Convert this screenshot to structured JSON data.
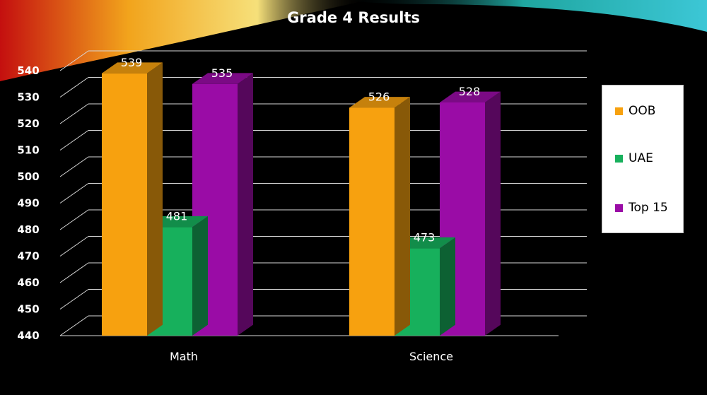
{
  "chart_data": {
    "type": "bar",
    "title": "Grade 4 Results",
    "categories": [
      "Math",
      "Science"
    ],
    "series": [
      {
        "name": "OOB",
        "color": "#F7A10F",
        "values": [
          539,
          526
        ]
      },
      {
        "name": "UAE",
        "color": "#17B05C",
        "values": [
          481,
          473
        ]
      },
      {
        "name": "Top 15",
        "color": "#9A0CA6",
        "values": [
          535,
          528
        ]
      }
    ],
    "ylim": [
      440,
      540
    ],
    "yticks": [
      440,
      450,
      460,
      470,
      480,
      490,
      500,
      510,
      520,
      530,
      540
    ],
    "grid": true,
    "legend_position": "right",
    "three_d": true
  }
}
